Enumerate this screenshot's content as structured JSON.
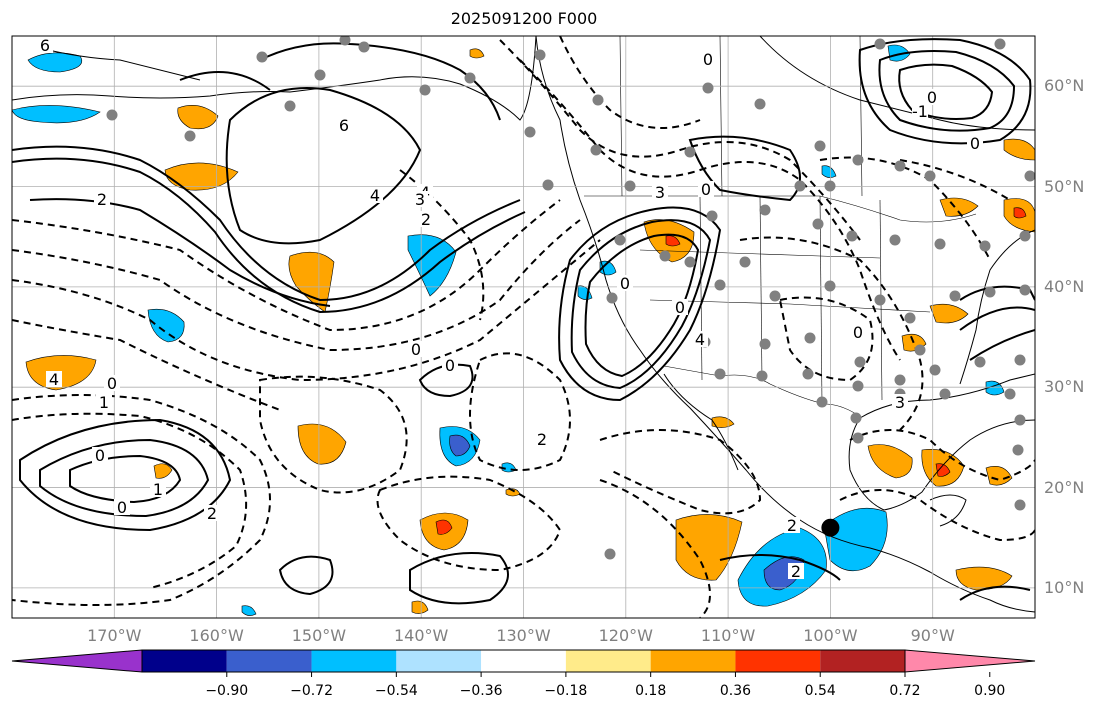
{
  "title": "2025091200 F000",
  "map": {
    "projection": "plate-carree",
    "lon_range": [
      -180,
      -80
    ],
    "lat_range": [
      7,
      65
    ],
    "grid": true,
    "colors": {
      "ocean": "#ffffff",
      "coast": "#000000",
      "grid": "#b0b0b0"
    }
  },
  "lat_labels": [
    "60°N",
    "50°N",
    "40°N",
    "30°N",
    "20°N",
    "10°N"
  ],
  "lon_labels": [
    "170°W",
    "160°W",
    "150°W",
    "140°W",
    "130°W",
    "120°W",
    "110°W",
    "100°W",
    "90°W"
  ],
  "colorbar": {
    "colors": [
      "#9932cc",
      "#00008b",
      "#3a5fcd",
      "#00bfff",
      "#aee2ff",
      "#ffffff",
      "#ffeb8a",
      "#ffa500",
      "#ff3300",
      "#b22222",
      "#ff88aa"
    ],
    "tick_labels": [
      "−0.90",
      "−0.72",
      "−0.54",
      "−0.36",
      "−0.18",
      "0.18",
      "0.36",
      "0.54",
      "0.72",
      "0.90"
    ],
    "extend": "both"
  },
  "contour_labels": [
    "2",
    "4",
    "6",
    "4",
    "3",
    "2",
    "0",
    "2",
    "2",
    "0",
    "1",
    "1",
    "0",
    "0",
    "4",
    "3",
    "0",
    "0",
    "3",
    "0",
    "-1",
    "0",
    "6",
    "4",
    "0",
    "0",
    "0",
    "2",
    "2",
    "0"
  ],
  "station_marker": {
    "lon": -100,
    "lat": 16,
    "color": "#000000"
  }
}
